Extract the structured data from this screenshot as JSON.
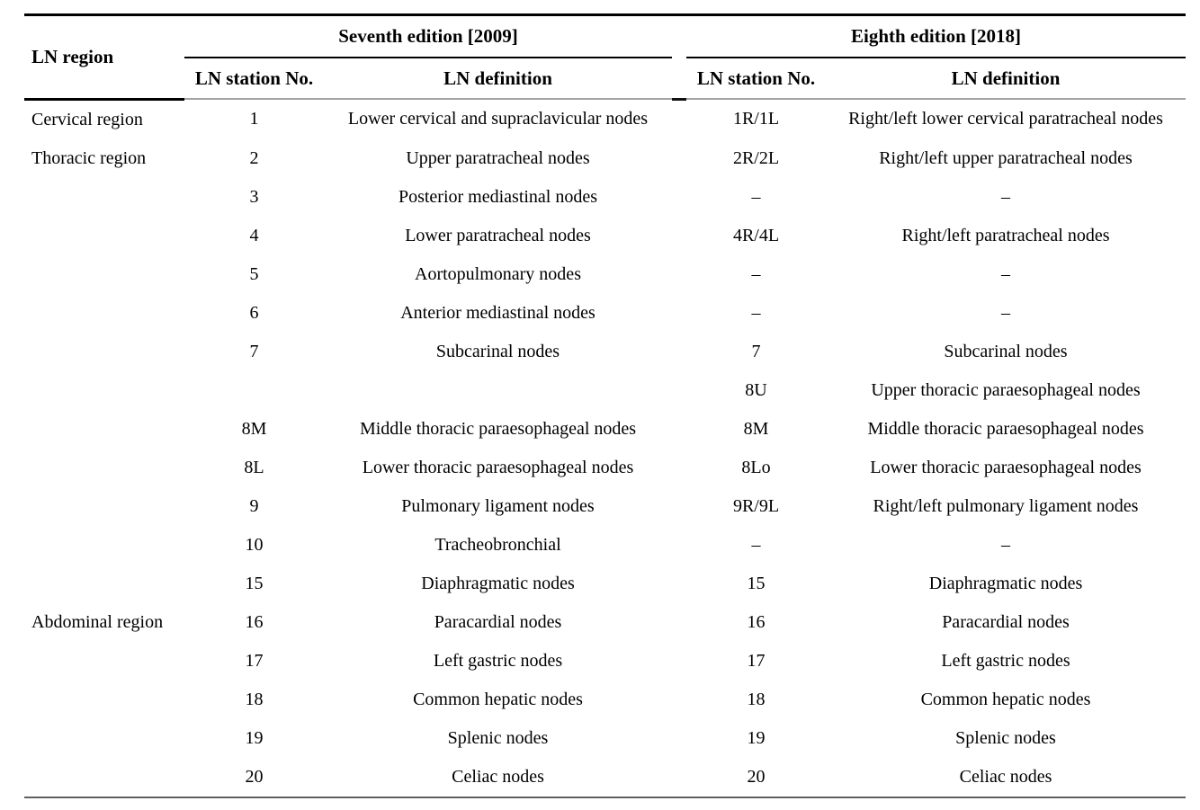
{
  "table": {
    "region_header": "LN region",
    "groups": [
      {
        "title": "Seventh edition [2009]",
        "station_header": "LN station No.",
        "definition_header": "LN definition"
      },
      {
        "title": "Eighth edition [2018]",
        "station_header": "LN station No.",
        "definition_header": "LN definition"
      }
    ],
    "rows": [
      {
        "region": "Cervical region",
        "s7_no": "1",
        "s7_def": "Lower cervical and supraclavicular nodes",
        "s8_no": "1R/1L",
        "s8_def": "Right/left lower cervical paratracheal nodes"
      },
      {
        "region": "Thoracic region",
        "s7_no": "2",
        "s7_def": "Upper paratracheal nodes",
        "s8_no": "2R/2L",
        "s8_def": "Right/left upper paratracheal nodes"
      },
      {
        "region": "",
        "s7_no": "3",
        "s7_def": "Posterior mediastinal nodes",
        "s8_no": "–",
        "s8_def": "–"
      },
      {
        "region": "",
        "s7_no": "4",
        "s7_def": "Lower paratracheal nodes",
        "s8_no": "4R/4L",
        "s8_def": "Right/left paratracheal nodes"
      },
      {
        "region": "",
        "s7_no": "5",
        "s7_def": "Aortopulmonary nodes",
        "s8_no": "–",
        "s8_def": "–"
      },
      {
        "region": "",
        "s7_no": "6",
        "s7_def": "Anterior mediastinal nodes",
        "s8_no": "–",
        "s8_def": "–"
      },
      {
        "region": "",
        "s7_no": "7",
        "s7_def": "Subcarinal nodes",
        "s8_no": "7",
        "s8_def": "Subcarinal nodes"
      },
      {
        "region": "",
        "s7_no": "",
        "s7_def": "",
        "s8_no": "8U",
        "s8_def": "Upper thoracic paraesophageal nodes"
      },
      {
        "region": "",
        "s7_no": "8M",
        "s7_def": "Middle thoracic paraesophageal nodes",
        "s8_no": "8M",
        "s8_def": "Middle thoracic paraesophageal nodes"
      },
      {
        "region": "",
        "s7_no": "8L",
        "s7_def": "Lower thoracic paraesophageal nodes",
        "s8_no": "8Lo",
        "s8_def": "Lower thoracic paraesophageal nodes"
      },
      {
        "region": "",
        "s7_no": "9",
        "s7_def": "Pulmonary ligament nodes",
        "s8_no": "9R/9L",
        "s8_def": "Right/left pulmonary ligament nodes"
      },
      {
        "region": "",
        "s7_no": "10",
        "s7_def": "Tracheobronchial",
        "s8_no": "–",
        "s8_def": "–"
      },
      {
        "region": "",
        "s7_no": "15",
        "s7_def": "Diaphragmatic nodes",
        "s8_no": "15",
        "s8_def": "Diaphragmatic nodes"
      },
      {
        "region": "Abdominal region",
        "s7_no": "16",
        "s7_def": "Paracardial nodes",
        "s8_no": "16",
        "s8_def": "Paracardial nodes"
      },
      {
        "region": "",
        "s7_no": "17",
        "s7_def": "Left gastric nodes",
        "s8_no": "17",
        "s8_def": "Left gastric nodes"
      },
      {
        "region": "",
        "s7_no": "18",
        "s7_def": "Common hepatic nodes",
        "s8_no": "18",
        "s8_def": "Common hepatic nodes"
      },
      {
        "region": "",
        "s7_no": "19",
        "s7_def": "Splenic nodes",
        "s8_no": "19",
        "s8_def": "Splenic nodes"
      },
      {
        "region": "",
        "s7_no": "20",
        "s7_def": "Celiac nodes",
        "s8_no": "20",
        "s8_def": "Celiac nodes"
      }
    ]
  }
}
